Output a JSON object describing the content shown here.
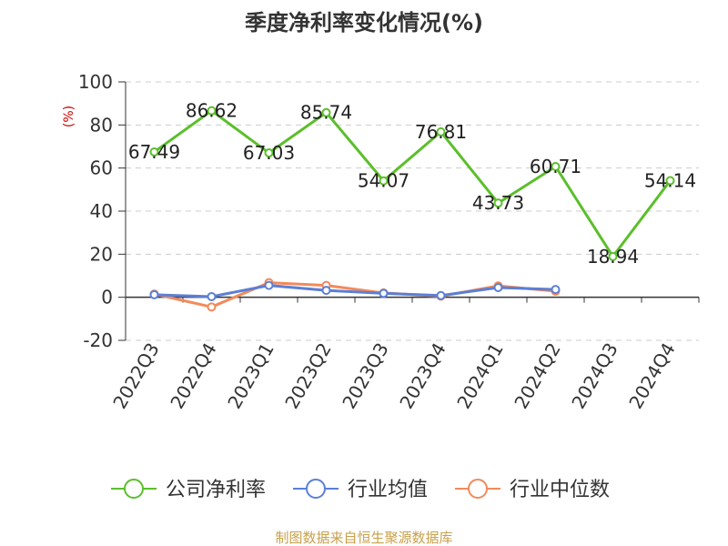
{
  "chart_data": {
    "type": "line",
    "title": "季度净利率变化情况(%)",
    "ylabel": "(%)",
    "ylim": [
      -20,
      100
    ],
    "yticks": [
      -20,
      0,
      20,
      40,
      60,
      80,
      100
    ],
    "categories": [
      "2022Q3",
      "2022Q4",
      "2023Q1",
      "2023Q2",
      "2023Q3",
      "2023Q4",
      "2024Q1",
      "2024Q2",
      "2024Q3",
      "2024Q4"
    ],
    "grid": true,
    "legend_position": "bottom",
    "series": [
      {
        "name": "公司净利率",
        "color": "#5bbf2a",
        "data_labels": true,
        "values": [
          67.49,
          86.62,
          67.03,
          85.74,
          54.07,
          76.81,
          43.73,
          60.71,
          18.94,
          54.14
        ]
      },
      {
        "name": "行业均值",
        "color": "#5b7fd6",
        "data_labels": false,
        "values": [
          1.2,
          0.3,
          5.5,
          3.2,
          1.8,
          0.8,
          4.5,
          3.6,
          null,
          null
        ]
      },
      {
        "name": "行业中位数",
        "color": "#f28a5b",
        "data_labels": false,
        "values": [
          1.5,
          -4.5,
          6.8,
          5.5,
          2.0,
          0.5,
          5.3,
          2.8,
          null,
          null
        ]
      }
    ]
  },
  "footer": {
    "source": "制图数据来自恒生聚源数据库"
  }
}
